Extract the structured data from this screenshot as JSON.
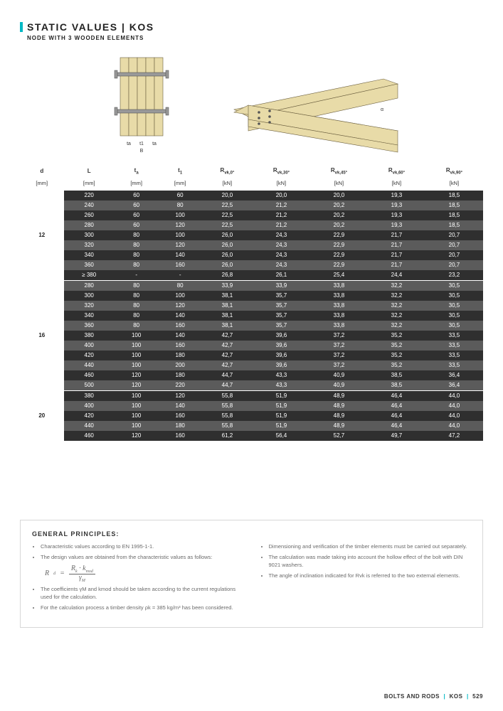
{
  "header": {
    "title": "STATIC VALUES | KOS",
    "subtitle": "NODE WITH 3 WOODEN ELEMENTS"
  },
  "diagram": {
    "label_ta": "ta",
    "label_t1": "t1",
    "label_ta2": "ta",
    "label_B": "B",
    "label_alpha": "α"
  },
  "table": {
    "columns": [
      {
        "key": "d",
        "label": "d",
        "unit": "[mm]"
      },
      {
        "key": "L",
        "label": "L",
        "unit": "[mm]"
      },
      {
        "key": "ta",
        "label": "t",
        "sub": "a",
        "unit": "[mm]"
      },
      {
        "key": "t1",
        "label": "t",
        "sub": "1",
        "unit": "[mm]"
      },
      {
        "key": "r0",
        "label": "R",
        "sub": "vk,0°",
        "unit": "[kN]"
      },
      {
        "key": "r30",
        "label": "R",
        "sub": "vk,30°",
        "unit": "[kN]"
      },
      {
        "key": "r45",
        "label": "R",
        "sub": "vk,45°",
        "unit": "[kN]"
      },
      {
        "key": "r60",
        "label": "R",
        "sub": "vk,60°",
        "unit": "[kN]"
      },
      {
        "key": "r90",
        "label": "R",
        "sub": "vk,90°",
        "unit": "[kN]"
      }
    ],
    "groups": [
      {
        "d": "12",
        "rows": [
          {
            "L": "220",
            "ta": "60",
            "t1": "60",
            "r0": "20,0",
            "r30": "20,0",
            "r45": "20,0",
            "r60": "19,3",
            "r90": "18,5"
          },
          {
            "L": "240",
            "ta": "60",
            "t1": "80",
            "r0": "22,5",
            "r30": "21,2",
            "r45": "20,2",
            "r60": "19,3",
            "r90": "18,5"
          },
          {
            "L": "260",
            "ta": "60",
            "t1": "100",
            "r0": "22,5",
            "r30": "21,2",
            "r45": "20,2",
            "r60": "19,3",
            "r90": "18,5"
          },
          {
            "L": "280",
            "ta": "60",
            "t1": "120",
            "r0": "22,5",
            "r30": "21,2",
            "r45": "20,2",
            "r60": "19,3",
            "r90": "18,5"
          },
          {
            "L": "300",
            "ta": "80",
            "t1": "100",
            "r0": "26,0",
            "r30": "24,3",
            "r45": "22,9",
            "r60": "21,7",
            "r90": "20,7"
          },
          {
            "L": "320",
            "ta": "80",
            "t1": "120",
            "r0": "26,0",
            "r30": "24,3",
            "r45": "22,9",
            "r60": "21,7",
            "r90": "20,7"
          },
          {
            "L": "340",
            "ta": "80",
            "t1": "140",
            "r0": "26,0",
            "r30": "24,3",
            "r45": "22,9",
            "r60": "21,7",
            "r90": "20,7"
          },
          {
            "L": "360",
            "ta": "80",
            "t1": "160",
            "r0": "26,0",
            "r30": "24,3",
            "r45": "22,9",
            "r60": "21,7",
            "r90": "20,7"
          },
          {
            "L": "≥ 380",
            "ta": "-",
            "t1": "-",
            "r0": "26,8",
            "r30": "26,1",
            "r45": "25,4",
            "r60": "24,4",
            "r90": "23,2"
          }
        ]
      },
      {
        "d": "16",
        "rows": [
          {
            "L": "280",
            "ta": "80",
            "t1": "80",
            "r0": "33,9",
            "r30": "33,9",
            "r45": "33,8",
            "r60": "32,2",
            "r90": "30,5"
          },
          {
            "L": "300",
            "ta": "80",
            "t1": "100",
            "r0": "38,1",
            "r30": "35,7",
            "r45": "33,8",
            "r60": "32,2",
            "r90": "30,5"
          },
          {
            "L": "320",
            "ta": "80",
            "t1": "120",
            "r0": "38,1",
            "r30": "35,7",
            "r45": "33,8",
            "r60": "32,2",
            "r90": "30,5"
          },
          {
            "L": "340",
            "ta": "80",
            "t1": "140",
            "r0": "38,1",
            "r30": "35,7",
            "r45": "33,8",
            "r60": "32,2",
            "r90": "30,5"
          },
          {
            "L": "360",
            "ta": "80",
            "t1": "160",
            "r0": "38,1",
            "r30": "35,7",
            "r45": "33,8",
            "r60": "32,2",
            "r90": "30,5"
          },
          {
            "L": "380",
            "ta": "100",
            "t1": "140",
            "r0": "42,7",
            "r30": "39,6",
            "r45": "37,2",
            "r60": "35,2",
            "r90": "33,5"
          },
          {
            "L": "400",
            "ta": "100",
            "t1": "160",
            "r0": "42,7",
            "r30": "39,6",
            "r45": "37,2",
            "r60": "35,2",
            "r90": "33,5"
          },
          {
            "L": "420",
            "ta": "100",
            "t1": "180",
            "r0": "42,7",
            "r30": "39,6",
            "r45": "37,2",
            "r60": "35,2",
            "r90": "33,5"
          },
          {
            "L": "440",
            "ta": "100",
            "t1": "200",
            "r0": "42,7",
            "r30": "39,6",
            "r45": "37,2",
            "r60": "35,2",
            "r90": "33,5"
          },
          {
            "L": "460",
            "ta": "120",
            "t1": "180",
            "r0": "44,7",
            "r30": "43,3",
            "r45": "40,9",
            "r60": "38,5",
            "r90": "36,4"
          },
          {
            "L": "500",
            "ta": "120",
            "t1": "220",
            "r0": "44,7",
            "r30": "43,3",
            "r45": "40,9",
            "r60": "38,5",
            "r90": "36,4"
          }
        ]
      },
      {
        "d": "20",
        "rows": [
          {
            "L": "380",
            "ta": "100",
            "t1": "120",
            "r0": "55,8",
            "r30": "51,9",
            "r45": "48,9",
            "r60": "46,4",
            "r90": "44,0"
          },
          {
            "L": "400",
            "ta": "100",
            "t1": "140",
            "r0": "55,8",
            "r30": "51,9",
            "r45": "48,9",
            "r60": "46,4",
            "r90": "44,0"
          },
          {
            "L": "420",
            "ta": "100",
            "t1": "160",
            "r0": "55,8",
            "r30": "51,9",
            "r45": "48,9",
            "r60": "46,4",
            "r90": "44,0"
          },
          {
            "L": "440",
            "ta": "100",
            "t1": "180",
            "r0": "55,8",
            "r30": "51,9",
            "r45": "48,9",
            "r60": "46,4",
            "r90": "44,0"
          },
          {
            "L": "460",
            "ta": "120",
            "t1": "160",
            "r0": "61,2",
            "r30": "56,4",
            "r45": "52,7",
            "r60": "49,7",
            "r90": "47,2"
          }
        ]
      }
    ]
  },
  "notes": {
    "title": "GENERAL PRINCIPLES:",
    "left": [
      "Characteristic values according to EN 1995-1-1.",
      "The design values are obtained from the characteristic values as follows:"
    ],
    "formula": {
      "lhs": "R",
      "lhs_sub": "d",
      "eq": "=",
      "num1": "R",
      "num1_sub": "k",
      "dot": "·",
      "num2": "k",
      "num2_sub": "mod",
      "den": "γ",
      "den_sub": "M"
    },
    "left2": [
      "The coefficients γM and kmod should be taken according to the current regulations used for the calculation.",
      "For the calculation process a timber density ρk = 385 kg/m³ has been considered."
    ],
    "right": [
      "Dimensioning and verification of the timber elements must be carried out separately.",
      "The calculation was made taking into account the hollow effect of the bolt with DIN 9021 washers.",
      "The angle of inclination indicated for Rvk is referred to the two external elements."
    ]
  },
  "footer": {
    "left": "BOLTS AND RODS",
    "sep": "|",
    "mid": "KOS",
    "page": "529"
  }
}
